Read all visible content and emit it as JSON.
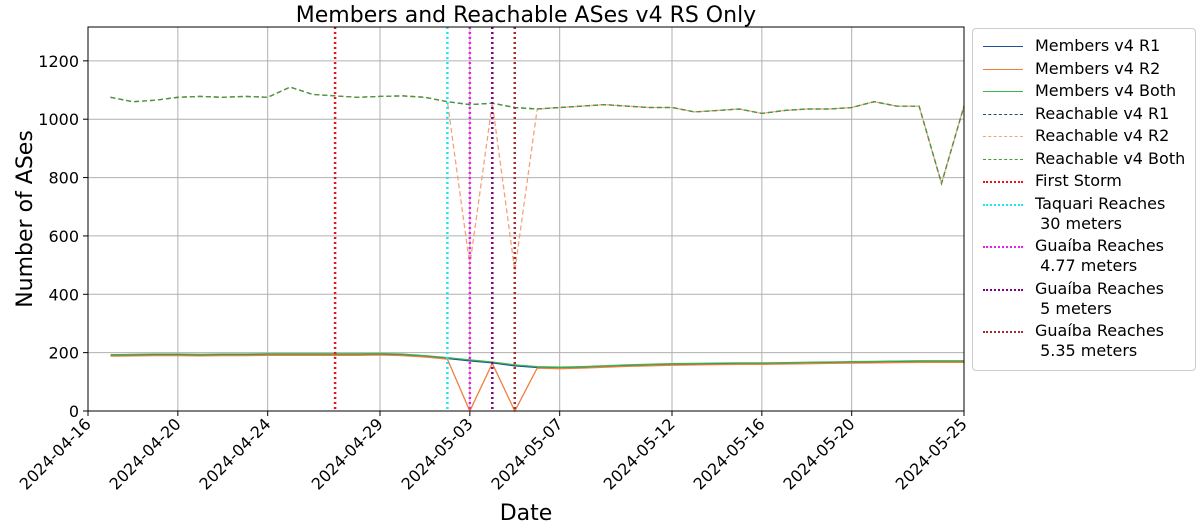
{
  "chart_data": {
    "type": "line",
    "title": "Members and Reachable ASes v4 RS Only",
    "xlabel": "Date",
    "ylabel": "Number of ASes",
    "x": [
      "2024-04-17",
      "2024-04-18",
      "2024-04-19",
      "2024-04-20",
      "2024-04-21",
      "2024-04-22",
      "2024-04-23",
      "2024-04-24",
      "2024-04-25",
      "2024-04-26",
      "2024-04-27",
      "2024-04-28",
      "2024-04-29",
      "2024-04-30",
      "2024-05-01",
      "2024-05-02",
      "2024-05-03",
      "2024-05-04",
      "2024-05-05",
      "2024-05-06",
      "2024-05-07",
      "2024-05-08",
      "2024-05-09",
      "2024-05-10",
      "2024-05-11",
      "2024-05-12",
      "2024-05-13",
      "2024-05-14",
      "2024-05-15",
      "2024-05-16",
      "2024-05-17",
      "2024-05-18",
      "2024-05-19",
      "2024-05-20",
      "2024-05-21",
      "2024-05-22",
      "2024-05-23",
      "2024-05-24",
      "2024-05-25"
    ],
    "series": [
      {
        "name": "Members v4 R1",
        "color": "#1f4e9c",
        "style": "solid",
        "values": [
          190,
          191,
          192,
          192,
          191,
          192,
          192,
          193,
          193,
          193,
          193,
          193,
          194,
          192,
          187,
          180,
          172,
          165,
          155,
          149,
          147,
          149,
          152,
          155,
          157,
          159,
          160,
          161,
          162,
          162,
          163,
          164,
          165,
          166,
          167,
          168,
          169,
          169,
          169
        ]
      },
      {
        "name": "Members v4 R2",
        "color": "#f07e3e",
        "style": "solid",
        "values": [
          188,
          189,
          190,
          190,
          189,
          190,
          190,
          191,
          191,
          191,
          191,
          191,
          192,
          190,
          185,
          178,
          0,
          163,
          0,
          147,
          145,
          147,
          150,
          153,
          155,
          157,
          158,
          159,
          160,
          160,
          161,
          162,
          163,
          164,
          165,
          166,
          167,
          167,
          167
        ]
      },
      {
        "name": "Members v4 Both",
        "color": "#3cb54a",
        "style": "solid",
        "values": [
          193,
          194,
          195,
          195,
          194,
          195,
          195,
          196,
          196,
          196,
          196,
          196,
          197,
          195,
          190,
          183,
          175,
          168,
          158,
          152,
          150,
          152,
          155,
          158,
          160,
          162,
          163,
          164,
          165,
          165,
          166,
          167,
          168,
          169,
          170,
          171,
          172,
          172,
          172
        ]
      },
      {
        "name": "Reachable v4 R1",
        "color": "#1f4e79",
        "style": "dashed",
        "values": [
          1075,
          1060,
          1065,
          1075,
          1078,
          1075,
          1078,
          1075,
          1110,
          1085,
          1080,
          1075,
          1078,
          1080,
          1075,
          1060,
          1050,
          1055,
          1040,
          1035,
          1040,
          1045,
          1050,
          1045,
          1040,
          1040,
          1025,
          1030,
          1035,
          1020,
          1030,
          1035,
          1035,
          1040,
          1060,
          1045,
          1045,
          780,
          1045
        ]
      },
      {
        "name": "Reachable v4 R2",
        "color": "#f4a27a",
        "style": "dashed",
        "values": [
          1075,
          1060,
          1065,
          1075,
          1078,
          1075,
          1078,
          1075,
          1110,
          1085,
          1080,
          1075,
          1078,
          1080,
          1075,
          1060,
          500,
          1055,
          480,
          1035,
          1040,
          1045,
          1050,
          1045,
          1040,
          1040,
          1025,
          1030,
          1035,
          1020,
          1030,
          1035,
          1035,
          1040,
          1060,
          1045,
          1045,
          780,
          1045
        ]
      },
      {
        "name": "Reachable v4 Both",
        "color": "#4a9a3c",
        "style": "dashed",
        "values": [
          1075,
          1060,
          1065,
          1075,
          1078,
          1075,
          1078,
          1075,
          1110,
          1085,
          1080,
          1075,
          1078,
          1080,
          1075,
          1060,
          1050,
          1055,
          1040,
          1035,
          1040,
          1045,
          1050,
          1045,
          1040,
          1040,
          1025,
          1030,
          1035,
          1020,
          1030,
          1035,
          1035,
          1040,
          1060,
          1045,
          1045,
          780,
          1045
        ]
      }
    ],
    "events": [
      {
        "name": "First Storm",
        "x": "2024-04-27",
        "color": "#e8141b"
      },
      {
        "name": "Taquari Reaches\n 30 meters",
        "x": "2024-05-02",
        "color": "#1ee6f0"
      },
      {
        "name": "Guaíba Reaches\n 4.77 meters",
        "x": "2024-05-03",
        "color": "#ee1ee6"
      },
      {
        "name": "Guaíba Reaches\n 5 meters",
        "x": "2024-05-04",
        "color": "#800080"
      },
      {
        "name": "Guaíba Reaches\n 5.35 meters",
        "x": "2024-05-05",
        "color": "#a52a2a"
      }
    ],
    "xlim": [
      "2024-04-16",
      "2024-05-25"
    ],
    "xticks": [
      "2024-04-16",
      "2024-04-20",
      "2024-04-24",
      "2024-04-29",
      "2024-05-03",
      "2024-05-07",
      "2024-05-12",
      "2024-05-16",
      "2024-05-20",
      "2024-05-25"
    ],
    "ylim": [
      0,
      1316
    ],
    "yticks": [
      0,
      200,
      400,
      600,
      800,
      1000,
      1200
    ],
    "grid": true,
    "legend": "outside right"
  }
}
